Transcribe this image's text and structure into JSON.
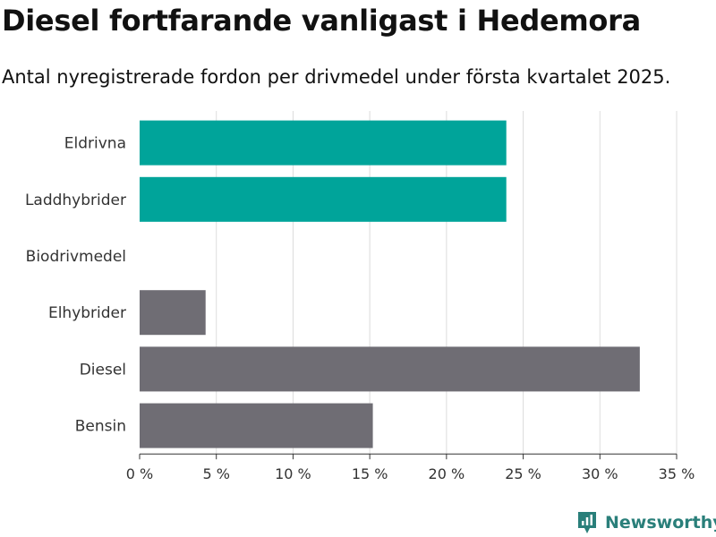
{
  "title": "Diesel fortfarande vanligast i Hedemora",
  "subtitle": "Antal nyregistrerade fordon per drivmedel under första kvartalet 2025.",
  "brand": {
    "name": "Newsworthy",
    "icon": "newsworthy-logo-icon",
    "color": "#2a7f7a"
  },
  "chart_data": {
    "type": "bar",
    "orientation": "horizontal",
    "categories": [
      "Eldrivna",
      "Laddhybrider",
      "Biodrivmedel",
      "Elhybrider",
      "Diesel",
      "Bensin"
    ],
    "values": [
      23.9,
      23.9,
      0,
      4.3,
      32.6,
      15.2
    ],
    "colors": [
      "#00a49a",
      "#00a49a",
      "#00a49a",
      "#6f6d74",
      "#6f6d74",
      "#6f6d74"
    ],
    "xlim": [
      0,
      35
    ],
    "xticks": [
      0,
      5,
      10,
      15,
      20,
      25,
      30,
      35
    ],
    "xtick_labels": [
      "0 %",
      "5 %",
      "10 %",
      "15 %",
      "20 %",
      "25 %",
      "30 %",
      "35 %"
    ],
    "grid": true
  }
}
